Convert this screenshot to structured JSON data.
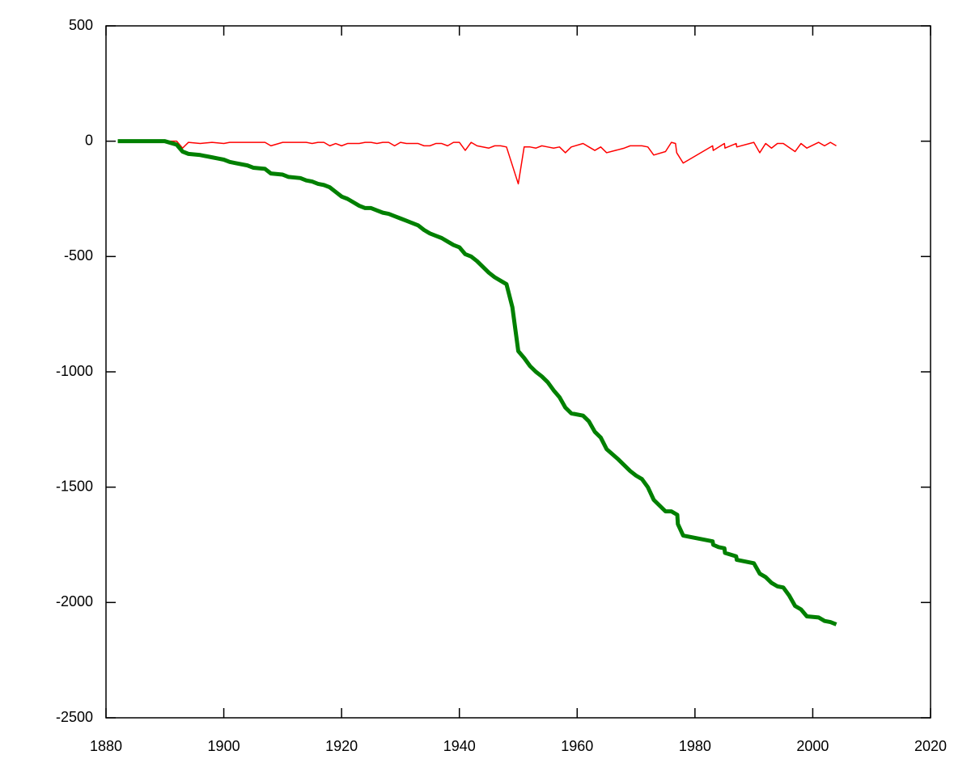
{
  "chart_data": {
    "type": "line",
    "xlim": [
      1880,
      2020
    ],
    "xticks": [
      1880,
      1900,
      1920,
      1940,
      1960,
      1980,
      2000,
      2020
    ],
    "ylim": [
      -2500,
      500
    ],
    "yticks": [
      500,
      0,
      -500,
      -1000,
      -1500,
      -2000,
      -2500
    ],
    "series": [
      {
        "color": "#ff0000",
        "width": 1.5,
        "x": [
          1882,
          1892,
          1893,
          1894,
          1896,
          1898,
          1900,
          1901,
          1907,
          1908,
          1910,
          1914,
          1915,
          1916,
          1917,
          1918,
          1919,
          1920,
          1921,
          1923,
          1924,
          1925,
          1926,
          1927,
          1928,
          1929,
          1930,
          1931,
          1933,
          1934,
          1935,
          1936,
          1937,
          1938,
          1939,
          1940,
          1941,
          1942,
          1943,
          1945,
          1946,
          1947,
          1948,
          1950,
          1951,
          1952,
          1953,
          1954,
          1955,
          1956,
          1957,
          1958,
          1959,
          1961,
          1962,
          1963,
          1964,
          1965,
          1968,
          1969,
          1971,
          1972,
          1973,
          1975,
          1976,
          1976.7,
          1976.9,
          1978,
          1983,
          1983.1,
          1985,
          1985.1,
          1987,
          1987.1,
          1990,
          1991,
          1992,
          1993,
          1994,
          1995,
          1997,
          1998,
          1999,
          2001,
          2002,
          2003,
          2004
        ],
        "values": [
          0,
          0,
          -30,
          -5,
          -10,
          -5,
          -10,
          -5,
          -5,
          -20,
          -5,
          -5,
          -10,
          -5,
          -5,
          -20,
          -10,
          -20,
          -10,
          -10,
          -5,
          -5,
          -10,
          -5,
          -5,
          -20,
          -5,
          -10,
          -10,
          -20,
          -20,
          -10,
          -10,
          -20,
          -5,
          -5,
          -40,
          -5,
          -20,
          -30,
          -20,
          -20,
          -25,
          -185,
          -25,
          -25,
          -30,
          -20,
          -25,
          -30,
          -25,
          -50,
          -25,
          -10,
          -25,
          -40,
          -25,
          -50,
          -30,
          -20,
          -20,
          -25,
          -60,
          -45,
          -5,
          -10,
          -50,
          -95,
          -20,
          -40,
          -10,
          -30,
          -10,
          -25,
          -5,
          -50,
          -10,
          -30,
          -10,
          -10,
          -45,
          -10,
          -30,
          -5,
          -20,
          -5,
          -20
        ]
      },
      {
        "color": "#008000",
        "width": 5,
        "x": [
          1882,
          1890,
          1892,
          1893,
          1894,
          1896,
          1898,
          1899,
          1900,
          1901,
          1902,
          1904,
          1905,
          1907,
          1908,
          1910,
          1911,
          1913,
          1914,
          1915,
          1916,
          1917,
          1918,
          1919,
          1920,
          1921,
          1922,
          1923,
          1924,
          1925,
          1926,
          1927,
          1928,
          1929,
          1930,
          1931,
          1932,
          1933,
          1934,
          1935,
          1936,
          1937,
          1938,
          1939,
          1940,
          1941,
          1942,
          1943,
          1944,
          1945,
          1946,
          1947,
          1948,
          1949,
          1950,
          1951,
          1952,
          1953,
          1954,
          1955,
          1956,
          1957,
          1958,
          1959,
          1961,
          1962,
          1963,
          1964,
          1965,
          1967,
          1968,
          1969,
          1970,
          1971,
          1972,
          1973,
          1974,
          1975,
          1976,
          1977,
          1977.1,
          1978,
          1983,
          1983.1,
          1984,
          1985,
          1985.1,
          1987,
          1987.1,
          1990,
          1991,
          1992,
          1993,
          1994,
          1995,
          1996,
          1997,
          1998,
          1999,
          2001,
          2002,
          2003,
          2004
        ],
        "values": [
          0,
          0,
          -15,
          -45,
          -55,
          -60,
          -70,
          -75,
          -80,
          -90,
          -95,
          -105,
          -115,
          -120,
          -140,
          -145,
          -155,
          -160,
          -170,
          -175,
          -185,
          -190,
          -200,
          -220,
          -240,
          -250,
          -265,
          -280,
          -290,
          -290,
          -300,
          -310,
          -315,
          -325,
          -335,
          -345,
          -355,
          -365,
          -385,
          -400,
          -410,
          -420,
          -435,
          -450,
          -460,
          -490,
          -500,
          -520,
          -545,
          -570,
          -590,
          -605,
          -620,
          -720,
          -910,
          -940,
          -975,
          -1000,
          -1020,
          -1045,
          -1080,
          -1110,
          -1155,
          -1180,
          -1190,
          -1215,
          -1260,
          -1285,
          -1335,
          -1380,
          -1405,
          -1430,
          -1450,
          -1465,
          -1500,
          -1555,
          -1580,
          -1605,
          -1605,
          -1620,
          -1660,
          -1710,
          -1735,
          -1750,
          -1760,
          -1765,
          -1785,
          -1800,
          -1815,
          -1830,
          -1875,
          -1890,
          -1915,
          -1930,
          -1935,
          -1970,
          -2015,
          -2030,
          -2060,
          -2065,
          -2080,
          -2085,
          -2095
        ]
      }
    ]
  }
}
